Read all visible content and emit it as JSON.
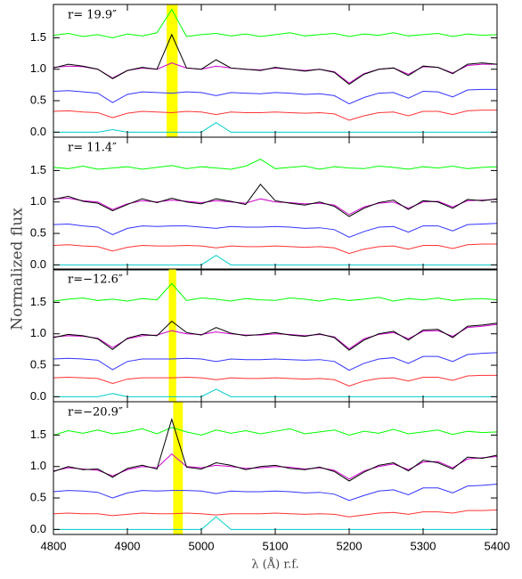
{
  "ylabel": "Normalized flux",
  "chart_data": [
    {
      "type": "line",
      "label": "r= 19.9″",
      "band": [
        4953,
        4968
      ],
      "xlim": [
        4800,
        5400
      ],
      "xticks": [
        4800,
        4900,
        5000,
        5100,
        5200,
        5300,
        5400
      ],
      "xtick_labels": false,
      "ylim": [
        -0.08,
        2.03
      ],
      "yticks": [
        {
          "value": 0,
          "label": "0.0"
        },
        0.5,
        {
          "value": 1,
          "label": "1.0"
        },
        1.5
      ],
      "x": [
        4800,
        4820,
        4840,
        4860,
        4880,
        4900,
        4920,
        4940,
        4960,
        4980,
        5000,
        5020,
        5040,
        5060,
        5080,
        5100,
        5120,
        5140,
        5160,
        5180,
        5200,
        5220,
        5240,
        5260,
        5280,
        5300,
        5320,
        5340,
        5360,
        5380,
        5400
      ],
      "series": [
        {
          "color": "#00ff00",
          "values": [
            1.54,
            1.57,
            1.52,
            1.55,
            1.5,
            1.56,
            1.53,
            1.58,
            1.95,
            1.52,
            1.55,
            1.57,
            1.53,
            1.56,
            1.52,
            1.55,
            1.58,
            1.53,
            1.55,
            1.57,
            1.52,
            1.56,
            1.54,
            1.58,
            1.53,
            1.55,
            1.57,
            1.52,
            1.56,
            1.54,
            1.55
          ]
        },
        {
          "color": "#cc00cc",
          "values": [
            1.03,
            1.05,
            1.04,
            1.0,
            0.86,
            0.98,
            1.02,
            1.0,
            1.1,
            1.02,
            1.0,
            1.05,
            1.02,
            1.0,
            0.99,
            1.02,
            1.0,
            0.98,
            1.0,
            0.96,
            0.78,
            0.93,
            1.0,
            1.02,
            0.92,
            1.04,
            1.03,
            0.94,
            1.06,
            1.08,
            1.08
          ]
        },
        {
          "color": "#000000",
          "values": [
            1.02,
            1.08,
            1.05,
            1.0,
            0.85,
            0.98,
            1.03,
            1.0,
            1.55,
            1.02,
            1.0,
            1.15,
            1.02,
            1.0,
            0.98,
            1.03,
            1.0,
            0.97,
            1.0,
            0.95,
            0.76,
            0.92,
            1.0,
            1.02,
            0.9,
            1.05,
            1.03,
            0.93,
            1.08,
            1.1,
            1.08
          ]
        },
        {
          "color": "#3333ff",
          "values": [
            0.65,
            0.66,
            0.64,
            0.62,
            0.47,
            0.6,
            0.64,
            0.63,
            0.62,
            0.64,
            0.63,
            0.58,
            0.63,
            0.62,
            0.61,
            0.63,
            0.62,
            0.6,
            0.61,
            0.58,
            0.45,
            0.55,
            0.62,
            0.63,
            0.54,
            0.65,
            0.64,
            0.56,
            0.67,
            0.68,
            0.68
          ]
        },
        {
          "color": "#ff3333",
          "values": [
            0.33,
            0.34,
            0.32,
            0.31,
            0.23,
            0.3,
            0.33,
            0.32,
            0.31,
            0.33,
            0.32,
            0.28,
            0.32,
            0.31,
            0.31,
            0.32,
            0.31,
            0.3,
            0.31,
            0.29,
            0.19,
            0.26,
            0.31,
            0.32,
            0.26,
            0.33,
            0.33,
            0.28,
            0.34,
            0.35,
            0.35
          ]
        },
        {
          "color": "#00cccc",
          "values": [
            0,
            0,
            0,
            0,
            0.04,
            0,
            0,
            0,
            0,
            0,
            0,
            0.15,
            0,
            0,
            0,
            0,
            0,
            0,
            0,
            0,
            0,
            0,
            0,
            0,
            0,
            0,
            0,
            0,
            0,
            0,
            0
          ]
        }
      ]
    },
    {
      "type": "line",
      "label": "r= 11.4″",
      "xlim": [
        4800,
        5400
      ],
      "xticks": [
        4800,
        4900,
        5000,
        5100,
        5200,
        5300,
        5400
      ],
      "xtick_labels": false,
      "ylim": [
        -0.08,
        2.03
      ],
      "yticks": [
        {
          "value": 0,
          "label": "0.0"
        },
        0.5,
        {
          "value": 1,
          "label": "1.0"
        },
        1.5
      ],
      "x": [
        4800,
        4820,
        4840,
        4860,
        4880,
        4900,
        4920,
        4940,
        4960,
        4980,
        5000,
        5020,
        5040,
        5060,
        5080,
        5100,
        5120,
        5140,
        5160,
        5180,
        5200,
        5220,
        5240,
        5260,
        5280,
        5300,
        5320,
        5340,
        5360,
        5380,
        5400
      ],
      "series": [
        {
          "color": "#00ff00",
          "values": [
            1.55,
            1.53,
            1.57,
            1.52,
            1.54,
            1.56,
            1.52,
            1.55,
            1.58,
            1.53,
            1.56,
            1.54,
            1.52,
            1.57,
            1.68,
            1.53,
            1.55,
            1.57,
            1.52,
            1.56,
            1.54,
            1.53,
            1.57,
            1.55,
            1.52,
            1.56,
            1.54,
            1.57,
            1.53,
            1.55,
            1.56
          ]
        },
        {
          "color": "#cc00cc",
          "values": [
            1.05,
            1.06,
            1.02,
            1.0,
            0.88,
            0.97,
            1.02,
            1.0,
            1.03,
            1.01,
            0.99,
            1.02,
            1.0,
            0.98,
            1.05,
            1.0,
            0.99,
            0.97,
            0.98,
            0.95,
            0.8,
            0.92,
            0.98,
            1.0,
            0.9,
            1.0,
            1.01,
            0.92,
            1.02,
            1.03,
            1.04
          ]
        },
        {
          "color": "#000000",
          "values": [
            1.04,
            1.09,
            1.01,
            0.98,
            0.86,
            0.96,
            1.05,
            0.99,
            1.06,
            1.0,
            0.97,
            1.05,
            1.01,
            0.96,
            1.28,
            1.02,
            0.98,
            0.95,
            1.0,
            0.93,
            0.77,
            0.9,
            0.99,
            1.03,
            0.88,
            1.02,
            1.0,
            0.9,
            1.04,
            1.02,
            1.05
          ]
        },
        {
          "color": "#3333ff",
          "values": [
            0.64,
            0.65,
            0.62,
            0.6,
            0.48,
            0.58,
            0.62,
            0.61,
            0.62,
            0.62,
            0.6,
            0.58,
            0.61,
            0.6,
            0.6,
            0.61,
            0.6,
            0.58,
            0.59,
            0.56,
            0.44,
            0.53,
            0.6,
            0.61,
            0.52,
            0.62,
            0.62,
            0.54,
            0.64,
            0.65,
            0.66
          ]
        },
        {
          "color": "#ff3333",
          "values": [
            0.31,
            0.32,
            0.3,
            0.29,
            0.22,
            0.28,
            0.31,
            0.3,
            0.3,
            0.31,
            0.3,
            0.27,
            0.3,
            0.29,
            0.29,
            0.3,
            0.29,
            0.28,
            0.29,
            0.27,
            0.18,
            0.25,
            0.29,
            0.3,
            0.25,
            0.31,
            0.31,
            0.26,
            0.32,
            0.33,
            0.33
          ]
        },
        {
          "color": "#00cccc",
          "values": [
            0,
            0,
            0,
            0,
            0,
            0,
            0,
            0,
            0,
            0,
            0,
            0.15,
            0,
            0,
            0,
            0,
            0,
            0,
            0,
            0,
            0,
            0,
            0,
            0,
            0,
            0,
            0,
            0,
            0,
            0,
            0
          ]
        }
      ]
    },
    {
      "type": "line",
      "label": "r=−12.6″",
      "band": [
        4956,
        4966
      ],
      "xlim": [
        4800,
        5400
      ],
      "xticks": [
        4800,
        4900,
        5000,
        5100,
        5200,
        5300,
        5400
      ],
      "xtick_labels": false,
      "ylim": [
        -0.08,
        2.03
      ],
      "yticks": [
        {
          "value": 0,
          "label": "0.0"
        },
        0.5,
        {
          "value": 1,
          "label": "1.0"
        },
        1.5
      ],
      "x": [
        4800,
        4820,
        4840,
        4860,
        4880,
        4900,
        4920,
        4940,
        4960,
        4980,
        5000,
        5020,
        5040,
        5060,
        5080,
        5100,
        5120,
        5140,
        5160,
        5180,
        5200,
        5220,
        5240,
        5260,
        5280,
        5300,
        5320,
        5340,
        5360,
        5380,
        5400
      ],
      "series": [
        {
          "color": "#00ff00",
          "values": [
            1.52,
            1.55,
            1.57,
            1.53,
            1.55,
            1.52,
            1.56,
            1.54,
            1.8,
            1.53,
            1.57,
            1.55,
            1.52,
            1.56,
            1.54,
            1.53,
            1.57,
            1.55,
            1.52,
            1.56,
            1.53,
            1.55,
            1.58,
            1.52,
            1.56,
            1.54,
            1.57,
            1.53,
            1.55,
            1.56,
            1.54
          ]
        },
        {
          "color": "#cc00cc",
          "values": [
            0.95,
            0.97,
            0.96,
            0.93,
            0.78,
            0.92,
            0.97,
            0.98,
            1.05,
            1.0,
            0.99,
            1.03,
            1.0,
            0.98,
            0.98,
            1.0,
            0.99,
            0.97,
            0.99,
            0.95,
            0.76,
            0.92,
            0.99,
            1.02,
            0.92,
            1.04,
            1.05,
            0.96,
            1.1,
            1.12,
            1.15
          ]
        },
        {
          "color": "#000000",
          "values": [
            0.94,
            0.99,
            0.97,
            0.92,
            0.75,
            0.93,
            0.99,
            0.97,
            1.2,
            1.02,
            0.98,
            1.1,
            1.01,
            0.97,
            0.99,
            1.02,
            0.98,
            0.96,
            1.0,
            0.94,
            0.74,
            0.9,
            1.0,
            1.04,
            0.9,
            1.06,
            1.07,
            0.94,
            1.12,
            1.14,
            1.17
          ]
        },
        {
          "color": "#3333ff",
          "values": [
            0.6,
            0.61,
            0.6,
            0.58,
            0.43,
            0.56,
            0.6,
            0.6,
            0.6,
            0.61,
            0.6,
            0.56,
            0.6,
            0.59,
            0.59,
            0.6,
            0.59,
            0.58,
            0.59,
            0.56,
            0.42,
            0.53,
            0.6,
            0.62,
            0.53,
            0.64,
            0.64,
            0.56,
            0.67,
            0.69,
            0.7
          ]
        },
        {
          "color": "#ff3333",
          "values": [
            0.3,
            0.31,
            0.3,
            0.29,
            0.21,
            0.28,
            0.3,
            0.3,
            0.3,
            0.31,
            0.3,
            0.27,
            0.3,
            0.29,
            0.29,
            0.3,
            0.29,
            0.28,
            0.29,
            0.27,
            0.17,
            0.25,
            0.29,
            0.3,
            0.25,
            0.31,
            0.31,
            0.26,
            0.33,
            0.34,
            0.34
          ]
        },
        {
          "color": "#00cccc",
          "values": [
            0,
            0,
            0,
            0,
            0.05,
            0,
            0,
            0,
            0,
            0,
            0,
            0.12,
            0,
            0,
            0,
            0,
            0,
            0,
            0,
            0,
            0,
            0,
            0,
            0,
            0,
            0,
            0,
            0,
            0,
            0,
            0
          ]
        }
      ]
    },
    {
      "type": "line",
      "label": "r=−20.9″",
      "band": [
        4962,
        4975
      ],
      "xlim": [
        4800,
        5400
      ],
      "xticks": [
        4800,
        4900,
        5000,
        5100,
        5200,
        5300,
        5400
      ],
      "xtick_labels": true,
      "xlabel": "λ (Å) r.f.",
      "ylim": [
        -0.08,
        2.03
      ],
      "yticks": [
        {
          "value": 0,
          "label": "0.0"
        },
        0.5,
        {
          "value": 1,
          "label": "1.0"
        },
        1.5
      ],
      "x": [
        4800,
        4820,
        4840,
        4860,
        4880,
        4900,
        4920,
        4940,
        4960,
        4980,
        5000,
        5020,
        5040,
        5060,
        5080,
        5100,
        5120,
        5140,
        5160,
        5180,
        5200,
        5220,
        5240,
        5260,
        5280,
        5300,
        5320,
        5340,
        5360,
        5380,
        5400
      ],
      "series": [
        {
          "color": "#00ff00",
          "values": [
            1.5,
            1.57,
            1.53,
            1.58,
            1.52,
            1.55,
            1.6,
            1.52,
            1.62,
            1.55,
            1.5,
            1.58,
            1.53,
            1.57,
            1.52,
            1.56,
            1.6,
            1.52,
            1.55,
            1.58,
            1.5,
            1.56,
            1.53,
            1.59,
            1.52,
            1.55,
            1.58,
            1.51,
            1.56,
            1.54,
            1.55
          ]
        },
        {
          "color": "#cc00cc",
          "values": [
            0.93,
            0.98,
            0.96,
            0.94,
            0.85,
            0.95,
            1.0,
            0.98,
            1.2,
            1.0,
            0.98,
            1.02,
            1.0,
            0.97,
            0.98,
            1.0,
            0.99,
            0.96,
            0.98,
            0.94,
            0.8,
            0.93,
            1.0,
            1.04,
            0.95,
            1.07,
            1.08,
            0.98,
            1.12,
            1.14,
            1.16
          ]
        },
        {
          "color": "#000000",
          "values": [
            0.92,
            1.0,
            0.95,
            0.96,
            0.83,
            0.97,
            1.02,
            0.96,
            1.75,
            0.99,
            0.96,
            1.06,
            1.02,
            0.95,
            1.0,
            1.02,
            0.97,
            0.95,
            0.99,
            0.92,
            0.77,
            0.91,
            1.02,
            1.06,
            0.93,
            1.1,
            1.06,
            0.96,
            1.15,
            1.13,
            1.18
          ]
        },
        {
          "color": "#3333ff",
          "values": [
            0.6,
            0.62,
            0.61,
            0.59,
            0.5,
            0.58,
            0.62,
            0.61,
            0.62,
            0.62,
            0.61,
            0.57,
            0.61,
            0.6,
            0.6,
            0.61,
            0.6,
            0.58,
            0.59,
            0.56,
            0.46,
            0.54,
            0.61,
            0.63,
            0.55,
            0.66,
            0.66,
            0.58,
            0.69,
            0.7,
            0.72
          ]
        },
        {
          "color": "#ff3333",
          "values": [
            0.25,
            0.26,
            0.25,
            0.25,
            0.22,
            0.24,
            0.26,
            0.25,
            0.25,
            0.26,
            0.25,
            0.23,
            0.25,
            0.25,
            0.25,
            0.26,
            0.25,
            0.24,
            0.25,
            0.24,
            0.2,
            0.23,
            0.26,
            0.27,
            0.24,
            0.28,
            0.28,
            0.26,
            0.3,
            0.3,
            0.31
          ]
        },
        {
          "color": "#00cccc",
          "values": [
            0,
            0,
            0,
            0,
            0,
            0,
            0,
            0,
            0,
            0,
            0,
            0.2,
            0,
            0,
            0,
            0,
            0,
            0,
            0,
            0,
            0,
            0,
            0,
            0,
            0,
            0,
            0,
            0,
            0,
            0,
            0
          ]
        }
      ]
    }
  ]
}
